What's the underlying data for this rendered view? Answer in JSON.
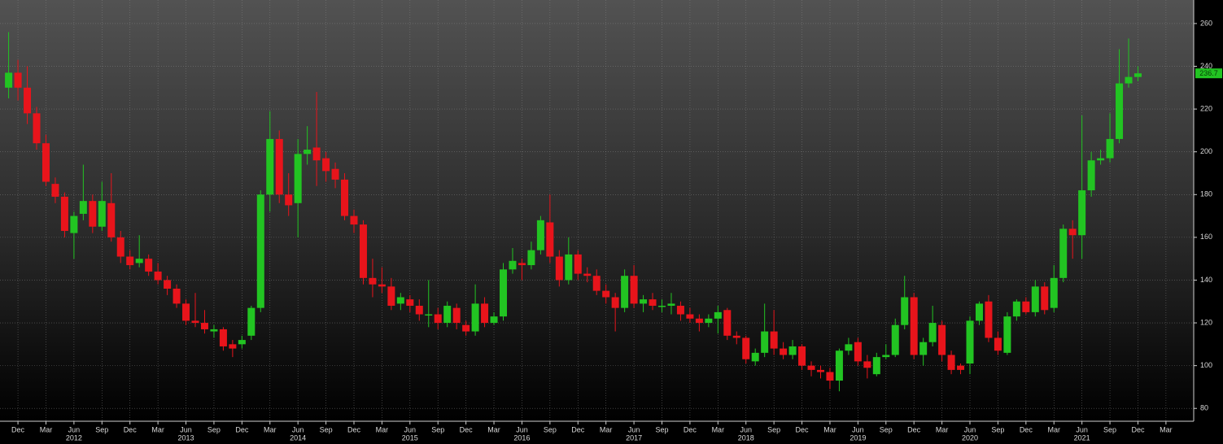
{
  "chart_data": {
    "type": "candlestick",
    "x": [
      "2011-11",
      "2011-12",
      "2012-01",
      "2012-02",
      "2012-03",
      "2012-04",
      "2012-05",
      "2012-06",
      "2012-07",
      "2012-08",
      "2012-09",
      "2012-10",
      "2012-11",
      "2012-12",
      "2013-01",
      "2013-02",
      "2013-03",
      "2013-04",
      "2013-05",
      "2013-06",
      "2013-07",
      "2013-08",
      "2013-09",
      "2013-10",
      "2013-11",
      "2013-12",
      "2014-01",
      "2014-02",
      "2014-03",
      "2014-04",
      "2014-05",
      "2014-06",
      "2014-07",
      "2014-08",
      "2014-09",
      "2014-10",
      "2014-11",
      "2014-12",
      "2015-01",
      "2015-02",
      "2015-03",
      "2015-04",
      "2015-05",
      "2015-06",
      "2015-07",
      "2015-08",
      "2015-09",
      "2015-10",
      "2015-11",
      "2015-12",
      "2016-01",
      "2016-02",
      "2016-03",
      "2016-04",
      "2016-05",
      "2016-06",
      "2016-07",
      "2016-08",
      "2016-09",
      "2016-10",
      "2016-11",
      "2016-12",
      "2017-01",
      "2017-02",
      "2017-03",
      "2017-04",
      "2017-05",
      "2017-06",
      "2017-07",
      "2017-08",
      "2017-09",
      "2017-10",
      "2017-11",
      "2017-12",
      "2018-01",
      "2018-02",
      "2018-03",
      "2018-04",
      "2018-05",
      "2018-06",
      "2018-07",
      "2018-08",
      "2018-09",
      "2018-10",
      "2018-11",
      "2018-12",
      "2019-01",
      "2019-02",
      "2019-03",
      "2019-04",
      "2019-05",
      "2019-06",
      "2019-07",
      "2019-08",
      "2019-09",
      "2019-10",
      "2019-11",
      "2019-12",
      "2020-01",
      "2020-02",
      "2020-03",
      "2020-04",
      "2020-05",
      "2020-06",
      "2020-07",
      "2020-08",
      "2020-09",
      "2020-10",
      "2020-11",
      "2020-12",
      "2021-01",
      "2021-02",
      "2021-03",
      "2021-04",
      "2021-05",
      "2021-06",
      "2021-07",
      "2021-08",
      "2021-09",
      "2021-10",
      "2021-11",
      "2021-12"
    ],
    "open": [
      230,
      237,
      230,
      218,
      204,
      185,
      179,
      162,
      171,
      177,
      165,
      176,
      160,
      151,
      148,
      150,
      144,
      140,
      136,
      129,
      121,
      120,
      116,
      117,
      110,
      110,
      114,
      127,
      180,
      206,
      180,
      176,
      199,
      202,
      197,
      192,
      187,
      170,
      166,
      141,
      138,
      137,
      129,
      131,
      128,
      124,
      124,
      120,
      127,
      119,
      116,
      129,
      120,
      123,
      145,
      148,
      147,
      154,
      167,
      151,
      140,
      152,
      143,
      142,
      135,
      132,
      127,
      142,
      129,
      131,
      128,
      128,
      128,
      124,
      122,
      120,
      122,
      126,
      114,
      113,
      102,
      106,
      116,
      108,
      105,
      109,
      100,
      98,
      97,
      93,
      107,
      111,
      102,
      96,
      104,
      105,
      119,
      132,
      105,
      111,
      119,
      105,
      100,
      101,
      121,
      130,
      113,
      106,
      123,
      130,
      125,
      137,
      127,
      141,
      164,
      161,
      182,
      196,
      197,
      206,
      232,
      235
    ],
    "high": [
      256,
      243,
      240,
      221,
      208,
      188,
      181,
      172,
      194,
      180,
      186,
      190,
      163,
      154,
      161,
      152,
      148,
      142,
      138,
      131,
      134,
      126,
      119,
      118,
      112,
      114,
      128,
      182,
      219,
      210,
      190,
      206,
      212,
      228,
      200,
      195,
      190,
      173,
      168,
      150,
      146,
      141,
      134,
      133,
      131,
      140,
      127,
      130,
      129,
      121,
      138,
      132,
      125,
      148,
      155,
      150,
      158,
      170,
      180,
      154,
      160,
      154,
      146,
      145,
      138,
      134,
      145,
      147,
      133,
      134,
      131,
      134,
      130,
      127,
      124,
      124,
      128,
      127,
      116,
      114,
      108,
      129,
      126,
      111,
      112,
      110,
      102,
      100,
      99,
      108,
      113,
      113,
      105,
      106,
      110,
      122,
      142,
      134,
      113,
      128,
      121,
      107,
      101,
      123,
      130,
      133,
      116,
      125,
      131,
      132,
      140,
      139,
      147,
      166,
      168,
      217,
      200,
      201,
      218,
      248,
      253,
      240
    ],
    "low": [
      225,
      224,
      213,
      201,
      184,
      176,
      160,
      150,
      168,
      162,
      163,
      158,
      148,
      145,
      146,
      142,
      138,
      133,
      127,
      119,
      118,
      115,
      113,
      107,
      104,
      108,
      112,
      125,
      172,
      176,
      170,
      160,
      194,
      184,
      186,
      183,
      168,
      162,
      138,
      132,
      134,
      126,
      126,
      125,
      121,
      118,
      117,
      118,
      117,
      114,
      114,
      118,
      119,
      121,
      143,
      140,
      145,
      152,
      148,
      137,
      138,
      140,
      139,
      133,
      129,
      116,
      125,
      127,
      125,
      126,
      125,
      124,
      121,
      120,
      116,
      118,
      115,
      112,
      110,
      101,
      100,
      104,
      105,
      103,
      103,
      98,
      95,
      94,
      89,
      88,
      105,
      100,
      94,
      95,
      103,
      104,
      117,
      103,
      100,
      109,
      102,
      96,
      96,
      96,
      119,
      111,
      105,
      105,
      121,
      124,
      123,
      124,
      125,
      139,
      150,
      150,
      179,
      194,
      195,
      204,
      230,
      233
    ],
    "close": [
      237,
      230,
      218,
      204,
      186,
      179,
      163,
      170,
      177,
      165,
      177,
      160,
      151,
      147,
      150,
      144,
      140,
      136,
      129,
      121,
      120,
      117,
      117,
      109,
      108,
      112,
      127,
      180,
      206,
      180,
      175,
      199,
      201,
      196,
      191,
      187,
      170,
      166,
      141,
      138,
      137,
      128,
      132,
      128,
      124,
      124,
      120,
      128,
      120,
      116,
      129,
      120,
      123,
      145,
      149,
      147,
      154,
      168,
      151,
      140,
      152,
      143,
      142,
      135,
      132,
      127,
      142,
      129,
      131,
      128,
      128,
      129,
      124,
      122,
      120,
      122,
      125,
      114,
      113,
      103,
      106,
      116,
      108,
      105,
      109,
      100,
      98,
      97,
      93,
      107,
      110,
      102,
      99,
      104,
      105,
      119,
      132,
      105,
      111,
      120,
      105,
      98,
      98,
      121,
      129,
      113,
      107,
      123,
      130,
      125,
      137,
      126,
      141,
      164,
      161,
      182,
      196,
      197,
      206,
      232,
      235,
      236.7
    ],
    "up_color": "#22c422",
    "down_color": "#e8141b",
    "ylim": [
      74,
      271
    ],
    "yticks": [
      80,
      100,
      120,
      140,
      160,
      180,
      200,
      220,
      240,
      260
    ],
    "xticks": [
      {
        "value": "2011-12",
        "label": "Dec"
      },
      {
        "value": "2012-03",
        "label": "Mar"
      },
      {
        "value": "2012-06",
        "label": "Jun"
      },
      {
        "value": "2012-09",
        "label": "Sep"
      },
      {
        "value": "2012-12",
        "label": "Dec"
      },
      {
        "value": "2013-03",
        "label": "Mar"
      },
      {
        "value": "2013-06",
        "label": "Jun"
      },
      {
        "value": "2013-09",
        "label": "Sep"
      },
      {
        "value": "2013-12",
        "label": "Dec"
      },
      {
        "value": "2014-03",
        "label": "Mar"
      },
      {
        "value": "2014-06",
        "label": "Jun"
      },
      {
        "value": "2014-09",
        "label": "Sep"
      },
      {
        "value": "2014-12",
        "label": "Dec"
      },
      {
        "value": "2015-03",
        "label": "Mar"
      },
      {
        "value": "2015-06",
        "label": "Jun"
      },
      {
        "value": "2015-09",
        "label": "Sep"
      },
      {
        "value": "2015-12",
        "label": "Dec"
      },
      {
        "value": "2016-03",
        "label": "Mar"
      },
      {
        "value": "2016-06",
        "label": "Jun"
      },
      {
        "value": "2016-09",
        "label": "Sep"
      },
      {
        "value": "2016-12",
        "label": "Dec"
      },
      {
        "value": "2017-03",
        "label": "Mar"
      },
      {
        "value": "2017-06",
        "label": "Jun"
      },
      {
        "value": "2017-09",
        "label": "Sep"
      },
      {
        "value": "2017-12",
        "label": "Dec"
      },
      {
        "value": "2018-03",
        "label": "Mar"
      },
      {
        "value": "2018-06",
        "label": "Jun"
      },
      {
        "value": "2018-09",
        "label": "Sep"
      },
      {
        "value": "2018-12",
        "label": "Dec"
      },
      {
        "value": "2019-03",
        "label": "Mar"
      },
      {
        "value": "2019-06",
        "label": "Jun"
      },
      {
        "value": "2019-09",
        "label": "Sep"
      },
      {
        "value": "2019-12",
        "label": "Dec"
      },
      {
        "value": "2020-03",
        "label": "Mar"
      },
      {
        "value": "2020-06",
        "label": "Jun"
      },
      {
        "value": "2020-09",
        "label": "Sep"
      },
      {
        "value": "2020-12",
        "label": "Dec"
      },
      {
        "value": "2021-03",
        "label": "Mar"
      },
      {
        "value": "2021-06",
        "label": "Jun"
      },
      {
        "value": "2021-09",
        "label": "Sep"
      },
      {
        "value": "2021-12",
        "label": "Dec"
      },
      {
        "value": "2022-03",
        "label": "Mar"
      }
    ],
    "year_labels": [
      {
        "value": "2012-06",
        "label": "2012"
      },
      {
        "value": "2013-06",
        "label": "2013"
      },
      {
        "value": "2014-06",
        "label": "2014"
      },
      {
        "value": "2015-06",
        "label": "2015"
      },
      {
        "value": "2016-06",
        "label": "2016"
      },
      {
        "value": "2017-06",
        "label": "2017"
      },
      {
        "value": "2018-06",
        "label": "2018"
      },
      {
        "value": "2019-06",
        "label": "2019"
      },
      {
        "value": "2020-06",
        "label": "2020"
      },
      {
        "value": "2021-06",
        "label": "2021"
      }
    ],
    "grid": true
  }
}
